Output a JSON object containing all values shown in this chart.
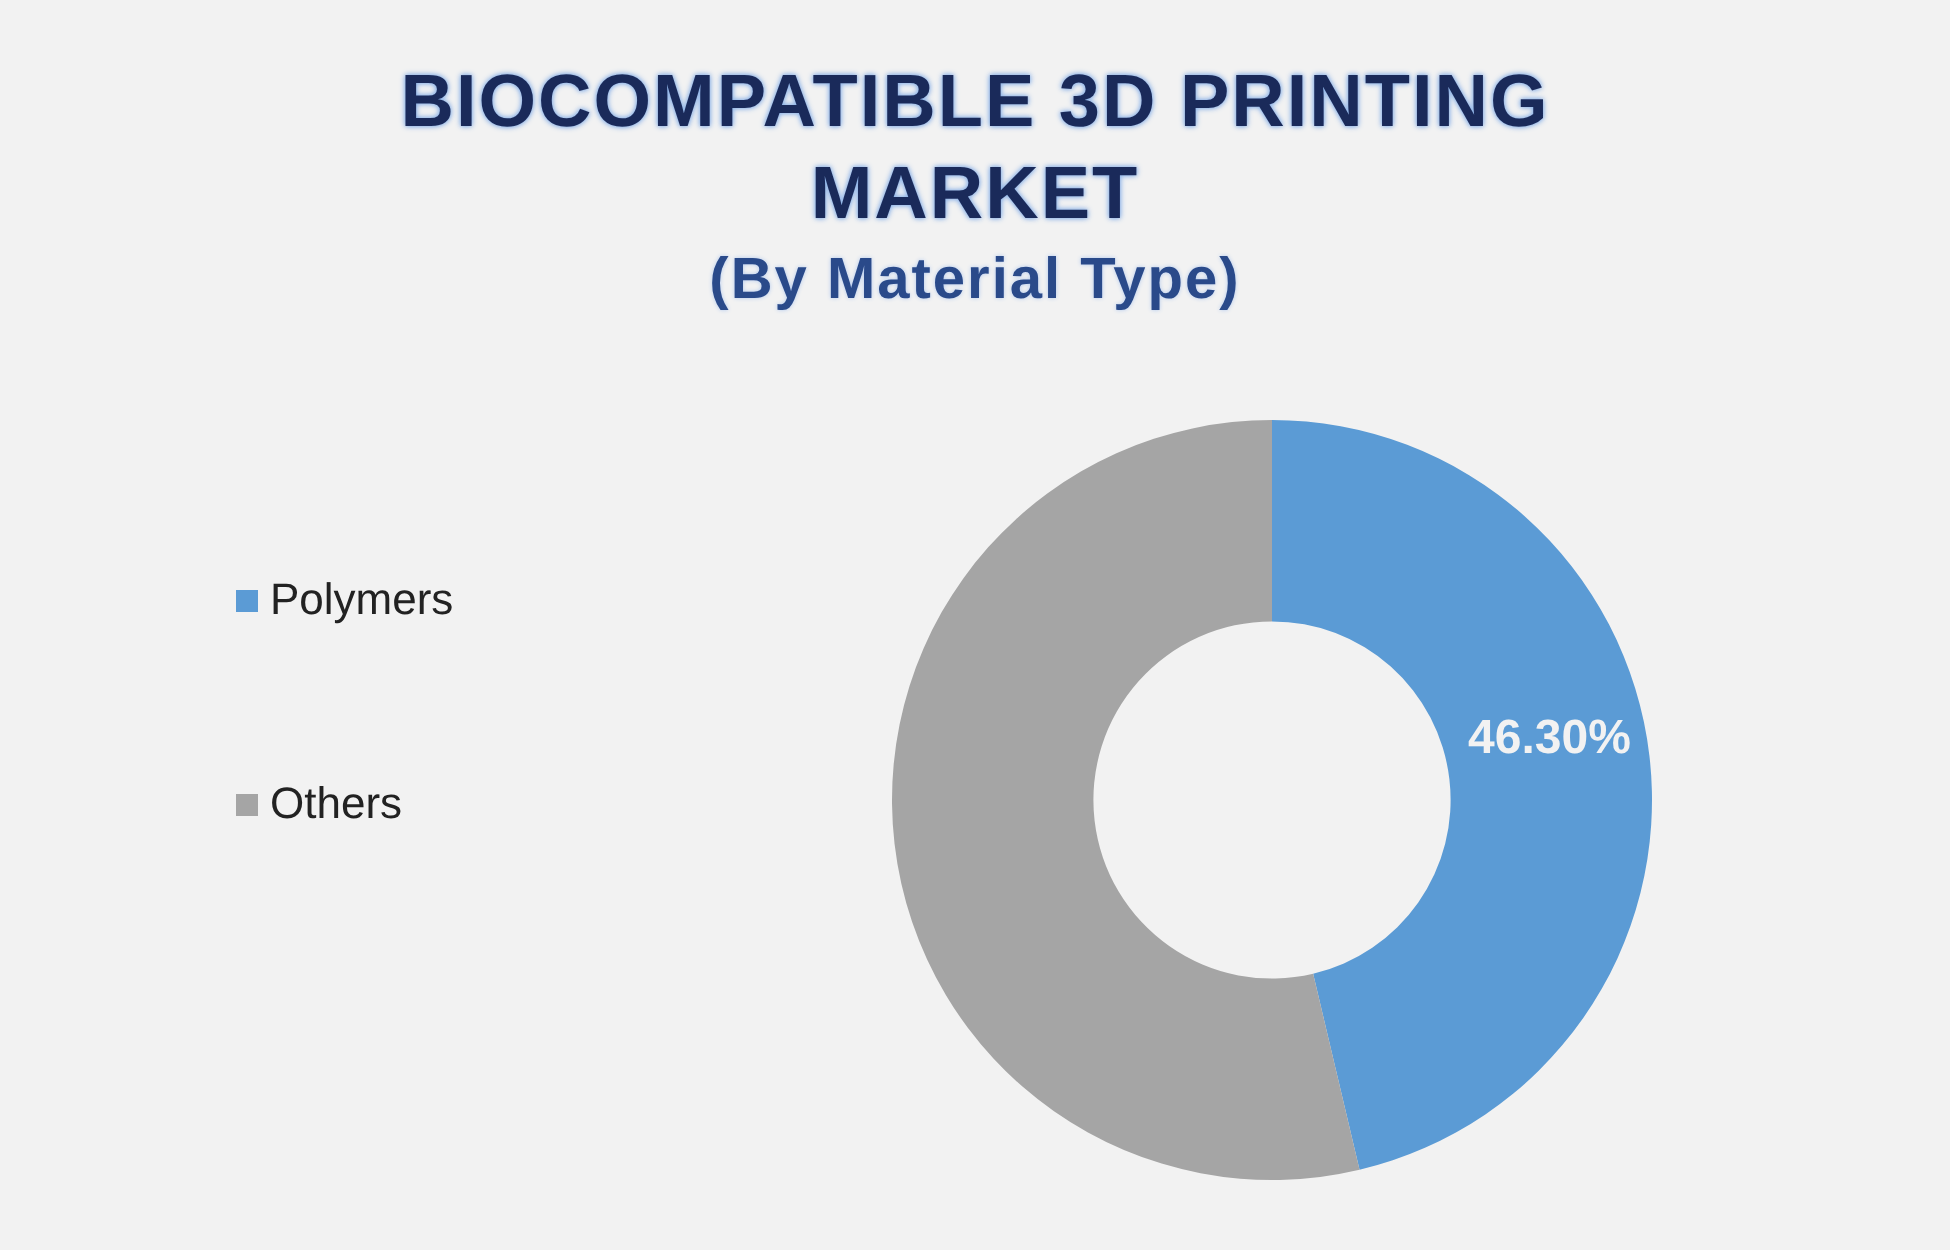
{
  "chart_data": {
    "type": "donut",
    "title": "BIOCOMPATIBLE 3D PRINTING MARKET",
    "subtitle": "(By Material Type)",
    "categories": [
      "Polymers",
      "Others"
    ],
    "values": [
      46.3,
      53.7
    ],
    "colors": [
      "#5b9bd5",
      "#a5a5a5"
    ],
    "value_labels": [
      "46.30%",
      null
    ],
    "legend": "left"
  }
}
